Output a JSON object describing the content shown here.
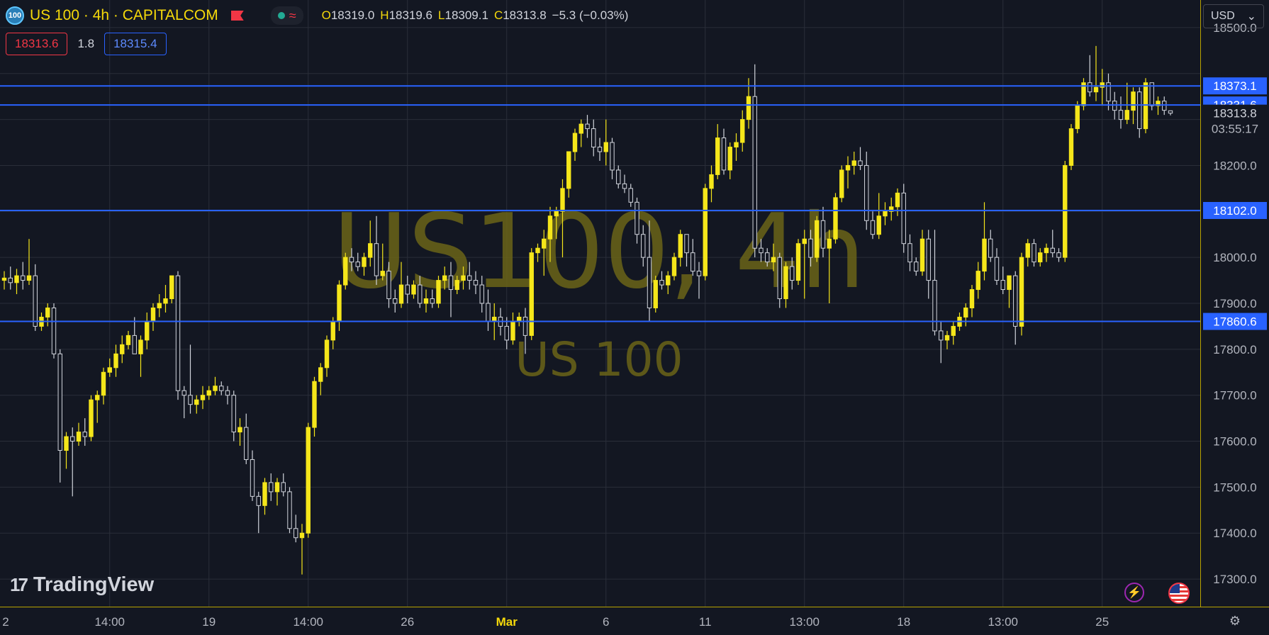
{
  "header": {
    "symbol_badge": "100",
    "title": "US 100 · 4h · CAPITALCOM",
    "ohlc": {
      "o_label": "O",
      "o": "18319.0",
      "h_label": "H",
      "h": "18319.6",
      "l_label": "L",
      "l": "18309.1",
      "c_label": "C",
      "c": "18313.8",
      "change": "−5.3 (−0.03%)"
    },
    "bid": "18313.6",
    "spread": "1.8",
    "ask": "18315.4"
  },
  "currency_select": "USD",
  "branding": {
    "name": "TradingView"
  },
  "watermark": {
    "main": "US100, 4h",
    "sub": "US 100"
  },
  "colors": {
    "background": "#131722",
    "candle": "#f5e61a",
    "hline": "#2962ff",
    "grid": "#2a2e39",
    "axis_line": "#b8a300"
  },
  "chart_data": {
    "type": "candlestick",
    "y_axis": {
      "range": [
        17240,
        18560
      ],
      "ticks": [
        17300,
        17400,
        17500,
        17600,
        17700,
        17800,
        17900,
        18000,
        18100,
        18200,
        18300,
        18400,
        18500
      ],
      "tick_labels": [
        "17300.0",
        "17400.0",
        "17500.0",
        "17600.0",
        "17700.0",
        "17800.0",
        "17900.0",
        "18000.0",
        "",
        "18200.0",
        "",
        "",
        "18500.0"
      ]
    },
    "x_axis": {
      "labels": [
        {
          "text": "2",
          "i": -1
        },
        {
          "text": "14:00",
          "i": 17
        },
        {
          "text": "19",
          "i": 33
        },
        {
          "text": "14:00",
          "i": 49
        },
        {
          "text": "26",
          "i": 65
        },
        {
          "text": "Mar",
          "i": 81
        },
        {
          "text": "6",
          "i": 97
        },
        {
          "text": "11",
          "i": 113
        },
        {
          "text": "13:00",
          "i": 129
        },
        {
          "text": "18",
          "i": 145
        },
        {
          "text": "13:00",
          "i": 161
        },
        {
          "text": "25",
          "i": 177
        }
      ]
    },
    "horizontal_lines": [
      18373.1,
      18331.6,
      18102.0,
      17860.6
    ],
    "price_labels": {
      "lines": [
        "18373.1",
        "18331.6",
        "18102.0",
        "17860.6"
      ],
      "last_price": "18313.8",
      "countdown": "03:55:17"
    },
    "candles": [
      [
        17950,
        17970,
        17930,
        17955
      ],
      [
        17955,
        17980,
        17930,
        17945
      ],
      [
        17945,
        17975,
        17920,
        17960
      ],
      [
        17960,
        17990,
        17930,
        17950
      ],
      [
        17950,
        18040,
        17940,
        17960
      ],
      [
        17960,
        17985,
        17840,
        17850
      ],
      [
        17850,
        17880,
        17840,
        17870
      ],
      [
        17870,
        17900,
        17850,
        17890
      ],
      [
        17890,
        17900,
        17780,
        17790
      ],
      [
        17790,
        17800,
        17510,
        17580
      ],
      [
        17580,
        17620,
        17540,
        17610
      ],
      [
        17610,
        17630,
        17480,
        17600
      ],
      [
        17600,
        17640,
        17590,
        17620
      ],
      [
        17620,
        17650,
        17590,
        17610
      ],
      [
        17610,
        17700,
        17600,
        17690
      ],
      [
        17690,
        17710,
        17640,
        17700
      ],
      [
        17700,
        17760,
        17680,
        17750
      ],
      [
        17750,
        17780,
        17740,
        17760
      ],
      [
        17760,
        17810,
        17740,
        17790
      ],
      [
        17790,
        17830,
        17770,
        17810
      ],
      [
        17810,
        17840,
        17800,
        17830
      ],
      [
        17830,
        17870,
        17790,
        17790
      ],
      [
        17790,
        17830,
        17740,
        17820
      ],
      [
        17820,
        17880,
        17800,
        17860
      ],
      [
        17860,
        17900,
        17840,
        17890
      ],
      [
        17890,
        17920,
        17870,
        17900
      ],
      [
        17900,
        17940,
        17880,
        17910
      ],
      [
        17910,
        17960,
        17900,
        17960
      ],
      [
        17960,
        17970,
        17690,
        17710
      ],
      [
        17710,
        17720,
        17650,
        17700
      ],
      [
        17700,
        17810,
        17660,
        17680
      ],
      [
        17680,
        17700,
        17660,
        17690
      ],
      [
        17690,
        17720,
        17670,
        17700
      ],
      [
        17700,
        17720,
        17690,
        17710
      ],
      [
        17710,
        17740,
        17700,
        17720
      ],
      [
        17720,
        17730,
        17700,
        17710
      ],
      [
        17710,
        17720,
        17680,
        17700
      ],
      [
        17700,
        17710,
        17600,
        17620
      ],
      [
        17620,
        17650,
        17590,
        17630
      ],
      [
        17630,
        17660,
        17550,
        17560
      ],
      [
        17560,
        17580,
        17470,
        17480
      ],
      [
        17480,
        17490,
        17400,
        17460
      ],
      [
        17460,
        17520,
        17440,
        17510
      ],
      [
        17510,
        17530,
        17470,
        17490
      ],
      [
        17490,
        17520,
        17460,
        17510
      ],
      [
        17510,
        17530,
        17480,
        17490
      ],
      [
        17490,
        17500,
        17400,
        17410
      ],
      [
        17410,
        17440,
        17380,
        17390
      ],
      [
        17390,
        17420,
        17310,
        17400
      ],
      [
        17400,
        17640,
        17390,
        17630
      ],
      [
        17630,
        17740,
        17610,
        17730
      ],
      [
        17730,
        17770,
        17700,
        17760
      ],
      [
        17760,
        17830,
        17740,
        17820
      ],
      [
        17820,
        17870,
        17800,
        17860
      ],
      [
        17860,
        17950,
        17840,
        17940
      ],
      [
        17940,
        18010,
        17930,
        18000
      ],
      [
        18000,
        18020,
        17970,
        17990
      ],
      [
        17990,
        18010,
        17970,
        17980
      ],
      [
        17980,
        18010,
        17960,
        18000
      ],
      [
        18000,
        18080,
        17980,
        18030
      ],
      [
        18030,
        18090,
        17940,
        17960
      ],
      [
        17960,
        18030,
        17950,
        17970
      ],
      [
        17970,
        17990,
        17890,
        17910
      ],
      [
        17910,
        17930,
        17880,
        17900
      ],
      [
        17900,
        17990,
        17890,
        17940
      ],
      [
        17940,
        17960,
        17900,
        17920
      ],
      [
        17920,
        17950,
        17910,
        17940
      ],
      [
        17940,
        17960,
        17890,
        17900
      ],
      [
        17900,
        17930,
        17880,
        17910
      ],
      [
        17910,
        17930,
        17890,
        17900
      ],
      [
        17900,
        17960,
        17890,
        17950
      ],
      [
        17950,
        17980,
        17930,
        17960
      ],
      [
        17960,
        17990,
        17870,
        17930
      ],
      [
        17930,
        17960,
        17920,
        17950
      ],
      [
        17950,
        17980,
        17930,
        17960
      ],
      [
        17960,
        17990,
        17930,
        17950
      ],
      [
        17950,
        17970,
        17920,
        17940
      ],
      [
        17940,
        17960,
        17880,
        17900
      ],
      [
        17900,
        17930,
        17840,
        17860
      ],
      [
        17860,
        17900,
        17820,
        17870
      ],
      [
        17870,
        17890,
        17830,
        17850
      ],
      [
        17850,
        17870,
        17800,
        17820
      ],
      [
        17820,
        17880,
        17810,
        17860
      ],
      [
        17860,
        17880,
        17850,
        17870
      ],
      [
        17870,
        17890,
        17790,
        17830
      ],
      [
        17830,
        18020,
        17820,
        18010
      ],
      [
        18010,
        18030,
        17990,
        18020
      ],
      [
        18020,
        18060,
        17960,
        18040
      ],
      [
        18040,
        18110,
        17990,
        18090
      ],
      [
        18090,
        18110,
        18040,
        18100
      ],
      [
        18100,
        18170,
        18000,
        18150
      ],
      [
        18150,
        18230,
        18130,
        18230
      ],
      [
        18230,
        18280,
        18210,
        18270
      ],
      [
        18270,
        18300,
        18240,
        18290
      ],
      [
        18290,
        18310,
        18260,
        18280
      ],
      [
        18280,
        18300,
        18220,
        18240
      ],
      [
        18240,
        18260,
        18210,
        18230
      ],
      [
        18230,
        18300,
        18200,
        18250
      ],
      [
        18250,
        18260,
        18170,
        18190
      ],
      [
        18190,
        18200,
        18150,
        18160
      ],
      [
        18160,
        18180,
        18140,
        18150
      ],
      [
        18150,
        18160,
        18110,
        18120
      ],
      [
        18120,
        18130,
        18030,
        18050
      ],
      [
        18050,
        18070,
        17980,
        18000
      ],
      [
        18000,
        18080,
        17860,
        17890
      ],
      [
        17890,
        17960,
        17880,
        17950
      ],
      [
        17950,
        17970,
        17930,
        17940
      ],
      [
        17940,
        17970,
        17920,
        17960
      ],
      [
        17960,
        18010,
        17950,
        18000
      ],
      [
        18000,
        18060,
        17980,
        18050
      ],
      [
        18050,
        18040,
        17980,
        18010
      ],
      [
        18010,
        18040,
        17960,
        17970
      ],
      [
        17970,
        17990,
        17910,
        17960
      ],
      [
        17960,
        18160,
        17950,
        18150
      ],
      [
        18150,
        18200,
        18120,
        18180
      ],
      [
        18180,
        18290,
        18170,
        18260
      ],
      [
        18260,
        18280,
        18180,
        18190
      ],
      [
        18190,
        18250,
        18170,
        18240
      ],
      [
        18240,
        18270,
        18210,
        18250
      ],
      [
        18250,
        18320,
        18230,
        18300
      ],
      [
        18300,
        18390,
        18280,
        18350
      ],
      [
        18350,
        18420,
        18000,
        18020
      ],
      [
        18020,
        18040,
        17990,
        18010
      ],
      [
        18010,
        18020,
        17980,
        17990
      ],
      [
        17990,
        18030,
        17970,
        18000
      ],
      [
        18000,
        18010,
        17890,
        17910
      ],
      [
        17910,
        17990,
        17890,
        17980
      ],
      [
        17980,
        18000,
        17930,
        17950
      ],
      [
        17950,
        18040,
        17940,
        18030
      ],
      [
        18030,
        18060,
        17910,
        18040
      ],
      [
        18040,
        18060,
        17980,
        18000
      ],
      [
        18000,
        18090,
        17990,
        18080
      ],
      [
        18080,
        18110,
        18000,
        18020
      ],
      [
        18020,
        18060,
        17900,
        18040
      ],
      [
        18040,
        18140,
        18030,
        18130
      ],
      [
        18130,
        18200,
        18120,
        18190
      ],
      [
        18190,
        18220,
        18150,
        18200
      ],
      [
        18200,
        18230,
        18180,
        18210
      ],
      [
        18210,
        18240,
        18190,
        18200
      ],
      [
        18200,
        18230,
        18060,
        18080
      ],
      [
        18080,
        18100,
        18040,
        18050
      ],
      [
        18050,
        18140,
        18040,
        18090
      ],
      [
        18090,
        18120,
        18070,
        18100
      ],
      [
        18100,
        18130,
        18080,
        18110
      ],
      [
        18110,
        18150,
        18090,
        18140
      ],
      [
        18140,
        18160,
        18010,
        18030
      ],
      [
        18030,
        18050,
        17970,
        17990
      ],
      [
        17990,
        18000,
        17960,
        17970
      ],
      [
        17970,
        18060,
        17960,
        18040
      ],
      [
        18040,
        18060,
        17910,
        17950
      ],
      [
        17950,
        18060,
        17830,
        17840
      ],
      [
        17840,
        17860,
        17770,
        17820
      ],
      [
        17820,
        17840,
        17800,
        17830
      ],
      [
        17830,
        17860,
        17810,
        17850
      ],
      [
        17850,
        17880,
        17840,
        17870
      ],
      [
        17870,
        17900,
        17850,
        17890
      ],
      [
        17890,
        17940,
        17870,
        17930
      ],
      [
        17930,
        17990,
        17910,
        17970
      ],
      [
        17970,
        18120,
        17950,
        18040
      ],
      [
        18040,
        18060,
        17990,
        18000
      ],
      [
        18000,
        18020,
        17940,
        17950
      ],
      [
        17950,
        17980,
        17920,
        17930
      ],
      [
        17930,
        17960,
        17890,
        17960
      ],
      [
        17960,
        17970,
        17810,
        17850
      ],
      [
        17850,
        18010,
        17830,
        18000
      ],
      [
        18000,
        18040,
        17980,
        18030
      ],
      [
        18030,
        18040,
        17980,
        17990
      ],
      [
        17990,
        18020,
        17980,
        18010
      ],
      [
        18010,
        18030,
        17990,
        18020
      ],
      [
        18020,
        18060,
        18000,
        18010
      ],
      [
        18010,
        18020,
        17990,
        18000
      ],
      [
        18000,
        18210,
        17990,
        18200
      ],
      [
        18200,
        18290,
        18190,
        18280
      ],
      [
        18280,
        18340,
        18270,
        18330
      ],
      [
        18330,
        18390,
        18320,
        18380
      ],
      [
        18380,
        18440,
        18350,
        18360
      ],
      [
        18360,
        18460,
        18340,
        18370
      ],
      [
        18370,
        18410,
        18330,
        18380
      ],
      [
        18380,
        18400,
        18320,
        18340
      ],
      [
        18340,
        18360,
        18300,
        18320
      ],
      [
        18320,
        18350,
        18280,
        18300
      ],
      [
        18300,
        18380,
        18290,
        18320
      ],
      [
        18320,
        18370,
        18290,
        18360
      ],
      [
        18360,
        18370,
        18260,
        18280
      ],
      [
        18280,
        18390,
        18270,
        18380
      ],
      [
        18380,
        18380,
        18320,
        18330
      ],
      [
        18330,
        18350,
        18310,
        18340
      ],
      [
        18340,
        18350,
        18310,
        18320
      ],
      [
        18319.0,
        18319.6,
        18309.1,
        18313.8
      ]
    ]
  }
}
